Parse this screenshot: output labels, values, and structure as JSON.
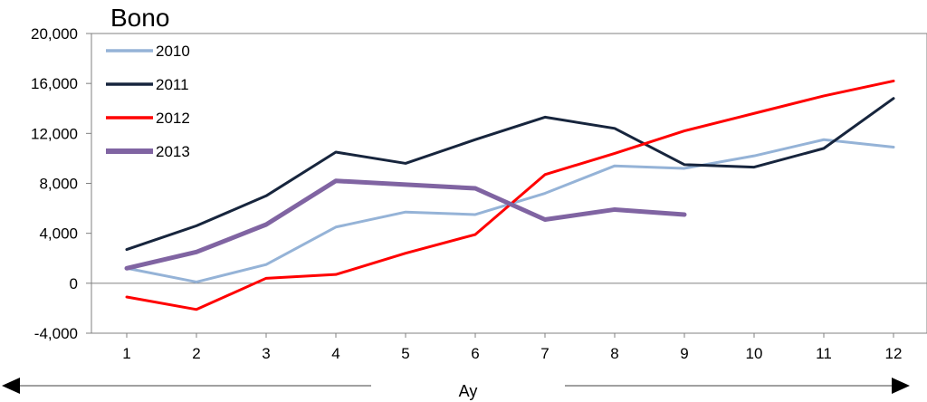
{
  "chart_data": {
    "type": "line",
    "title": "Bono",
    "xlabel": "Ay",
    "ylabel": "",
    "x": [
      1,
      2,
      3,
      4,
      5,
      6,
      7,
      8,
      9,
      10,
      11,
      12
    ],
    "x_tick_labels": [
      "1",
      "2",
      "3",
      "4",
      "5",
      "6",
      "7",
      "8",
      "9",
      "10",
      "11",
      "12"
    ],
    "ylim": [
      -4000,
      20000
    ],
    "y_ticks": [
      -4000,
      0,
      4000,
      8000,
      12000,
      16000,
      20000
    ],
    "y_tick_labels": [
      "-4,000",
      "0",
      "4,000",
      "8,000",
      "12,000",
      "16,000",
      "20,000"
    ],
    "grid": false,
    "legend_position": "top-left",
    "series": [
      {
        "name": "2010",
        "color": "#95b3d7",
        "width": "normal",
        "values": [
          1200,
          100,
          1500,
          4500,
          5700,
          5500,
          7200,
          9400,
          9200,
          10200,
          11500,
          10900
        ]
      },
      {
        "name": "2011",
        "color": "#17253d",
        "width": "normal",
        "values": [
          2700,
          4600,
          7000,
          10500,
          9600,
          11500,
          13300,
          12400,
          9500,
          9300,
          10800,
          14800
        ]
      },
      {
        "name": "2012",
        "color": "#ff0000",
        "width": "normal",
        "values": [
          -1100,
          -2100,
          400,
          700,
          2400,
          3900,
          8700,
          10400,
          12200,
          13600,
          15000,
          16200
        ]
      },
      {
        "name": "2013",
        "color": "#8064a2",
        "width": "thick",
        "values": [
          1200,
          2500,
          4700,
          8200,
          7900,
          7600,
          5100,
          5900,
          5500,
          null,
          null,
          null
        ]
      }
    ]
  }
}
